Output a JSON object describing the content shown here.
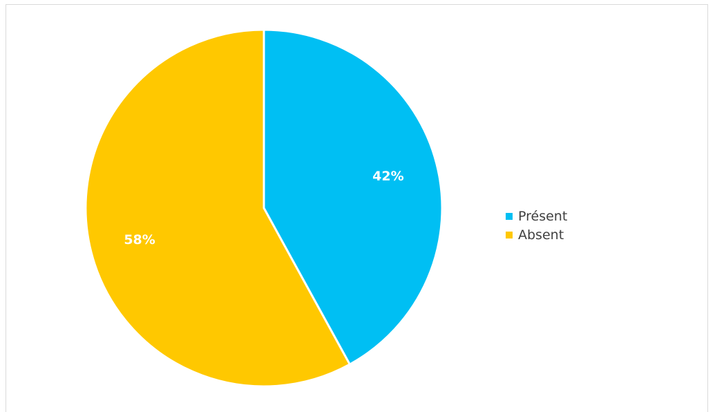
{
  "chart_data": {
    "type": "pie",
    "categories": [
      "Présent",
      "Absent"
    ],
    "values": [
      42,
      58
    ],
    "data_labels": [
      "42%",
      "58%"
    ],
    "colors": [
      "#00bff3",
      "#ffc800"
    ],
    "start_angle_deg": 0,
    "direction": "clockwise",
    "legend": "right",
    "title": ""
  },
  "legend": {
    "items": [
      {
        "label": "Présent",
        "color": "#00bff3"
      },
      {
        "label": "Absent",
        "color": "#ffc800"
      }
    ]
  }
}
